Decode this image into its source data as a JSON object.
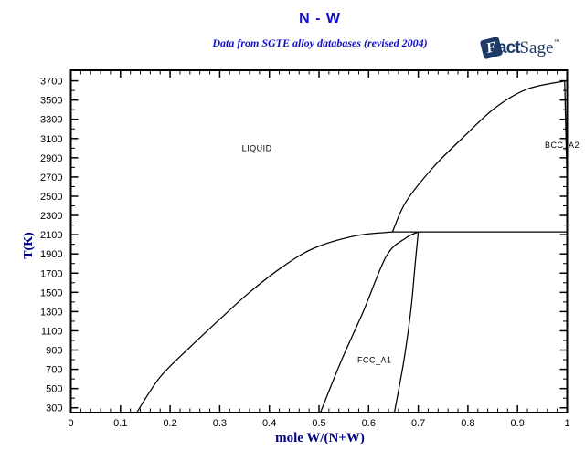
{
  "header": {
    "title": "N - W",
    "subtitle": "Data from SGTE alloy databases (revised 2004)"
  },
  "logo": {
    "f": "F",
    "act": "act",
    "sage": "Sage",
    "tm": "™"
  },
  "colors": {
    "title_blue": "#0f0fc8",
    "subtitle_blue": "#0f0fc8",
    "axis_label_navy": "#000080",
    "logo_navy": "#1e3a66",
    "line_black": "#000000"
  },
  "chart_data": {
    "type": "line",
    "title": "N - W",
    "subtitle": "Data from SGTE alloy databases (revised 2004)",
    "xlabel": "mole W/(N+W)",
    "ylabel": "T(K)",
    "xlim": [
      0,
      1
    ],
    "ylim": [
      250,
      3810
    ],
    "grid": false,
    "legend": "none",
    "x_ticks": {
      "major_step": 0.1,
      "minor_step": 0.02,
      "labels": [
        "0",
        "0.1",
        "0.2",
        "0.3",
        "0.4",
        "0.5",
        "0.6",
        "0.7",
        "0.8",
        "0.9",
        "1"
      ]
    },
    "y_ticks": {
      "major_step": 200,
      "minor_step": 100,
      "label_min": 300,
      "label_max": 3700
    },
    "series": [
      {
        "name": "liquidus-left",
        "points": [
          [
            0.133,
            252
          ],
          [
            0.18,
            620
          ],
          [
            0.24,
            930
          ],
          [
            0.3,
            1220
          ],
          [
            0.36,
            1500
          ],
          [
            0.425,
            1760
          ],
          [
            0.49,
            1960
          ],
          [
            0.575,
            2090
          ],
          [
            0.648,
            2128
          ]
        ]
      },
      {
        "name": "liquidus-right",
        "points": [
          [
            0.648,
            2128
          ],
          [
            0.675,
            2440
          ],
          [
            0.73,
            2800
          ],
          [
            0.79,
            3110
          ],
          [
            0.855,
            3420
          ],
          [
            0.92,
            3615
          ],
          [
            0.995,
            3697
          ]
        ]
      },
      {
        "name": "peritectic-line",
        "points": [
          [
            0.648,
            2128
          ],
          [
            1.0,
            2128
          ]
        ]
      },
      {
        "name": "fcc-left-boundary",
        "points": [
          [
            0.503,
            252
          ],
          [
            0.545,
            790
          ],
          [
            0.59,
            1310
          ],
          [
            0.636,
            1880
          ],
          [
            0.675,
            2065
          ],
          [
            0.7,
            2128
          ]
        ]
      },
      {
        "name": "fcc-right-boundary",
        "points": [
          [
            0.7,
            2128
          ],
          [
            0.694,
            1810
          ],
          [
            0.685,
            1310
          ],
          [
            0.671,
            790
          ],
          [
            0.652,
            252
          ]
        ]
      },
      {
        "name": "bcc-solvus",
        "points": [
          [
            0.995,
            3697
          ],
          [
            0.997,
            3250
          ],
          [
            0.9995,
            2700
          ]
        ]
      }
    ],
    "region_labels": [
      {
        "text": "LIQUID",
        "x": 0.375,
        "y": 3000
      },
      {
        "text": "FCC_A1",
        "x": 0.612,
        "y": 795
      },
      {
        "text": "BCC_A2",
        "x": 0.99,
        "y": 3030
      }
    ]
  }
}
